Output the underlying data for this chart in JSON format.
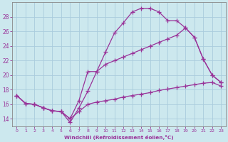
{
  "bg_color": "#cce8ee",
  "grid_color": "#aaccdd",
  "line_color": "#993399",
  "xlabel": "Windchill (Refroidissement éolien,°C)",
  "xlim": [
    -0.5,
    23.5
  ],
  "ylim": [
    13.0,
    30.0
  ],
  "yticks": [
    14,
    16,
    18,
    20,
    22,
    24,
    26,
    28
  ],
  "xticks": [
    0,
    1,
    2,
    3,
    4,
    5,
    6,
    7,
    8,
    9,
    10,
    11,
    12,
    13,
    14,
    15,
    16,
    17,
    18,
    19,
    20,
    21,
    22,
    23
  ],
  "line1_x": [
    0,
    1,
    2,
    3,
    4,
    5,
    6,
    7,
    8,
    9,
    10,
    11,
    12,
    13,
    14,
    15,
    16,
    17,
    18,
    19,
    20,
    21,
    22,
    23
  ],
  "line1_y": [
    17.2,
    16.1,
    16.0,
    15.5,
    15.1,
    15.0,
    13.5,
    15.5,
    17.8,
    20.5,
    23.2,
    25.8,
    27.2,
    28.7,
    29.2,
    29.2,
    28.7,
    27.5,
    27.5,
    26.5,
    25.2,
    22.2,
    20.0,
    19.0
  ],
  "line2_x": [
    0,
    1,
    2,
    3,
    4,
    5,
    6,
    7,
    8,
    9,
    10,
    11,
    12,
    13,
    14,
    15,
    16,
    17,
    18,
    19,
    20,
    21,
    22,
    23
  ],
  "line2_y": [
    17.2,
    16.1,
    16.0,
    15.5,
    15.1,
    15.0,
    14.0,
    16.5,
    20.5,
    20.5,
    21.5,
    22.0,
    22.5,
    23.0,
    23.5,
    24.0,
    24.5,
    25.0,
    25.5,
    26.5,
    25.2,
    22.2,
    20.0,
    19.0
  ],
  "line3_x": [
    0,
    1,
    2,
    3,
    4,
    5,
    6,
    7,
    8,
    9,
    10,
    11,
    12,
    13,
    14,
    15,
    16,
    17,
    18,
    19,
    20,
    21,
    22,
    23
  ],
  "line3_y": [
    17.2,
    16.1,
    16.0,
    15.5,
    15.1,
    15.0,
    14.0,
    15.0,
    16.0,
    16.3,
    16.5,
    16.7,
    17.0,
    17.2,
    17.4,
    17.6,
    17.9,
    18.1,
    18.3,
    18.5,
    18.7,
    18.9,
    19.0,
    18.5
  ]
}
